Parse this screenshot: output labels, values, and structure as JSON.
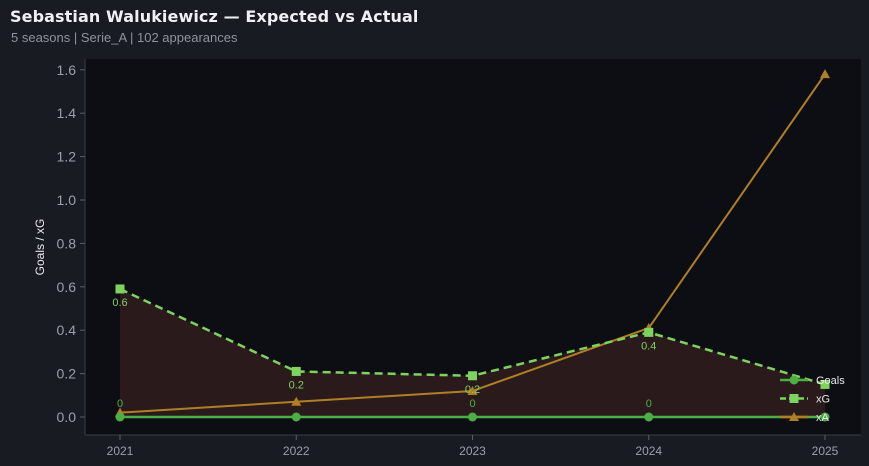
{
  "header": {
    "title": "Sebastian Walukiewicz — Expected vs Actual",
    "subtitle": "5 seasons | Serie_A | 102 appearances"
  },
  "colors": {
    "background": "#181b22",
    "plot_bg": "#0c0e13",
    "goals": "#4caf45",
    "xg": "#7ed35f",
    "xa": "#b07f25",
    "shade": "#2e1c1e"
  },
  "chart_data": {
    "type": "line",
    "title": "",
    "xlabel": "",
    "ylabel": "Goals / xG",
    "categories": [
      "2021",
      "2022",
      "2023",
      "2024",
      "2025"
    ],
    "ylim": [
      -0.08,
      1.65
    ],
    "yticks": [
      "0.0",
      "0.2",
      "0.4",
      "0.6",
      "0.8",
      "1.0",
      "1.2",
      "1.4",
      "1.6"
    ],
    "grid": false,
    "legend_position": "bottom-right",
    "series": [
      {
        "name": "Goals",
        "values": [
          0,
          0,
          0,
          0,
          0
        ],
        "style": "solid",
        "marker": "circle",
        "labels": [
          "0",
          "",
          "0",
          "0",
          ""
        ]
      },
      {
        "name": "xG",
        "values": [
          0.59,
          0.21,
          0.19,
          0.39,
          0.15
        ],
        "style": "dashed",
        "marker": "square",
        "labels": [
          "0.6",
          "0.2",
          "0.2",
          "0.4",
          ""
        ]
      },
      {
        "name": "xA",
        "values": [
          0.02,
          0.07,
          0.12,
          0.41,
          1.58
        ],
        "style": "solid",
        "marker": "triangle",
        "labels": [
          "",
          "",
          "",
          "",
          ""
        ]
      }
    ]
  }
}
